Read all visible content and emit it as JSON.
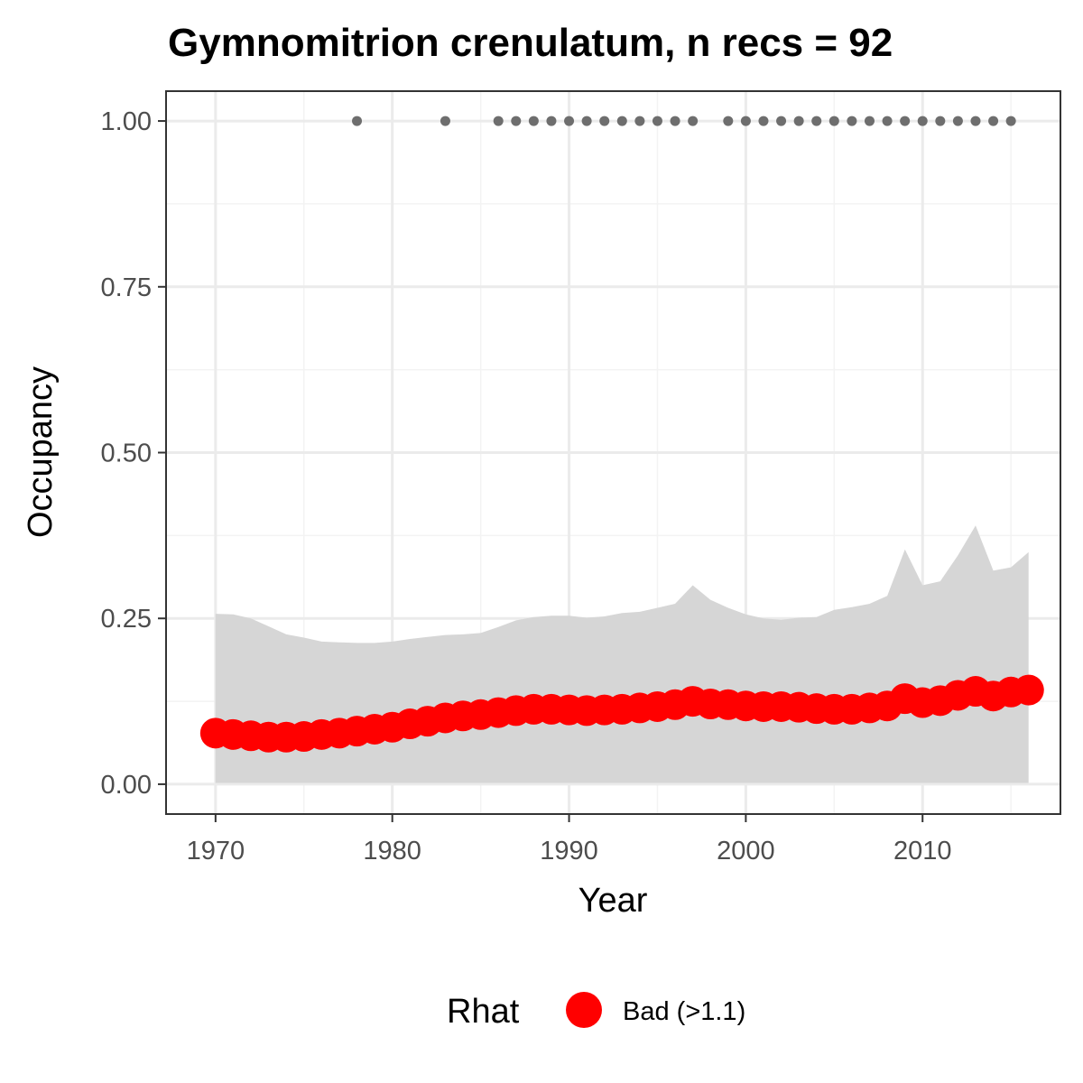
{
  "chart_data": {
    "type": "line",
    "title": "Gymnomitrion crenulatum, n recs = 92",
    "xlabel": "Year",
    "ylabel": "Occupancy",
    "xlim": [
      1967.2,
      2017.8
    ],
    "ylim": [
      -0.045,
      1.045
    ],
    "x_ticks": [
      1970,
      1980,
      1990,
      2000,
      2010
    ],
    "x_tick_labels": [
      "1970",
      "1980",
      "1990",
      "2000",
      "2010"
    ],
    "y_ticks": [
      0,
      0.25,
      0.5,
      0.75,
      1.0
    ],
    "y_tick_labels": [
      "0.00",
      "0.25",
      "0.50",
      "0.75",
      "1.00"
    ],
    "grid": true,
    "legend": {
      "position": "bottom",
      "title": "Rhat",
      "entries": [
        {
          "label": "Bad (>1.1)",
          "color": "#ff0000"
        }
      ]
    },
    "colors": {
      "occupancy": "#ff0000",
      "ribbon": "#d6d6d6",
      "records": "#6e6e6e",
      "grid_major": "#ebebeb",
      "grid_minor": "#f3f3f3",
      "panel_border": "#333333"
    },
    "x": [
      1970,
      1971,
      1972,
      1973,
      1974,
      1975,
      1976,
      1977,
      1978,
      1979,
      1980,
      1981,
      1982,
      1983,
      1984,
      1985,
      1986,
      1987,
      1988,
      1989,
      1990,
      1991,
      1992,
      1993,
      1994,
      1995,
      1996,
      1997,
      1998,
      1999,
      2000,
      2001,
      2002,
      2003,
      2004,
      2005,
      2006,
      2007,
      2008,
      2009,
      2010,
      2011,
      2012,
      2013,
      2014,
      2015,
      2016
    ],
    "occupancy_mean": [
      0.077,
      0.075,
      0.073,
      0.071,
      0.071,
      0.072,
      0.075,
      0.077,
      0.08,
      0.083,
      0.086,
      0.091,
      0.095,
      0.1,
      0.103,
      0.105,
      0.108,
      0.111,
      0.113,
      0.113,
      0.112,
      0.111,
      0.112,
      0.113,
      0.115,
      0.117,
      0.12,
      0.125,
      0.121,
      0.12,
      0.118,
      0.117,
      0.117,
      0.116,
      0.114,
      0.113,
      0.113,
      0.115,
      0.118,
      0.129,
      0.123,
      0.126,
      0.134,
      0.14,
      0.133,
      0.139,
      0.142
    ],
    "ribbon_upper": [
      0.257,
      0.256,
      0.25,
      0.238,
      0.226,
      0.221,
      0.215,
      0.214,
      0.213,
      0.213,
      0.215,
      0.219,
      0.222,
      0.225,
      0.226,
      0.228,
      0.237,
      0.247,
      0.252,
      0.254,
      0.254,
      0.251,
      0.253,
      0.258,
      0.26,
      0.266,
      0.272,
      0.3,
      0.278,
      0.266,
      0.256,
      0.25,
      0.248,
      0.251,
      0.252,
      0.263,
      0.267,
      0.272,
      0.284,
      0.354,
      0.3,
      0.306,
      0.345,
      0.39,
      0.322,
      0.327,
      0.35
    ],
    "ribbon_lower": [
      0.002,
      0.002,
      0.002,
      0.002,
      0.002,
      0.002,
      0.002,
      0.002,
      0.002,
      0.002,
      0.002,
      0.002,
      0.002,
      0.002,
      0.002,
      0.002,
      0.002,
      0.002,
      0.002,
      0.002,
      0.002,
      0.002,
      0.002,
      0.002,
      0.002,
      0.002,
      0.002,
      0.002,
      0.002,
      0.002,
      0.002,
      0.002,
      0.002,
      0.002,
      0.002,
      0.002,
      0.002,
      0.002,
      0.002,
      0.002,
      0.002,
      0.002,
      0.002,
      0.002,
      0.002,
      0.002,
      0.002
    ],
    "record_years": [
      1978,
      1983,
      1986,
      1987,
      1988,
      1989,
      1990,
      1991,
      1992,
      1993,
      1994,
      1995,
      1996,
      1997,
      1999,
      2000,
      2001,
      2002,
      2003,
      2004,
      2005,
      2006,
      2007,
      2008,
      2009,
      2010,
      2011,
      2012,
      2013,
      2014,
      2015
    ],
    "record_value": 1.0
  }
}
